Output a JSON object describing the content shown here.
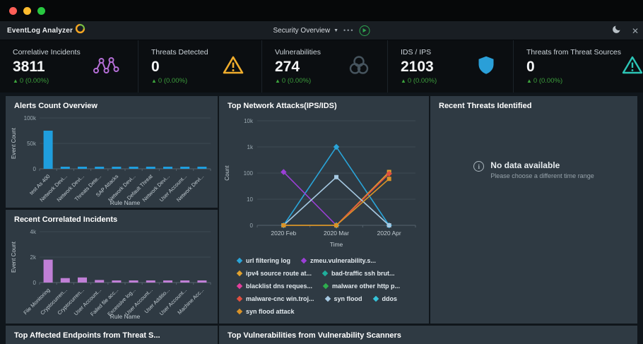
{
  "header": {
    "app_title": "EventLog Analyzer",
    "dashboard_selector": "Security Overview",
    "menu_dots": "•••"
  },
  "kpis": [
    {
      "label": "Correlative Incidents",
      "value": "3811",
      "delta": "0 (0.00%)",
      "icon": "molecule-icon",
      "icon_color": "#b66fd8"
    },
    {
      "label": "Threats Detected",
      "value": "0",
      "delta": "0 (0.00%)",
      "icon": "warning-triangle-icon",
      "icon_color": "#f0ad2d"
    },
    {
      "label": "Vulnerabilities",
      "value": "274",
      "delta": "0 (0.00%)",
      "icon": "biohazard-icon",
      "icon_color": "#46545e"
    },
    {
      "label": "IDS / IPS",
      "value": "2103",
      "delta": "0 (0.00%)",
      "icon": "shield-icon",
      "icon_color": "#2a9fd8"
    },
    {
      "label": "Threats from Threat Sources",
      "value": "0",
      "delta": "0 (0.00%)",
      "icon": "alert-triangle-icon",
      "icon_color": "#2cc5b6"
    }
  ],
  "panels": {
    "recent_threats": {
      "title": "Recent Threats Identified"
    },
    "top_endpoints": {
      "title": "Top Affected Endpoints from Threat S..."
    },
    "top_vulnerabilities": {
      "title": "Top Vulnerabilities from Vulnerability Scanners"
    }
  },
  "empty_state": {
    "title": "No data available",
    "subtitle": "Please choose a different time range"
  },
  "chart_data": [
    {
      "id": "alerts_count",
      "type": "bar",
      "title": "Alerts Count Overview",
      "categories": [
        "test As 400",
        "Network Devi...",
        "Network Devi...",
        "Threats Dete...",
        "SAP Attacks",
        "Network Devi...",
        "Default Threat",
        "Network Devi...",
        "User Account...",
        "Network Devi..."
      ],
      "values": [
        75000,
        1500,
        1500,
        1500,
        1500,
        1500,
        1500,
        1500,
        1500,
        1500
      ],
      "xlabel": "Rule Name",
      "ylabel": "Event Count",
      "yticks": [
        "0",
        "50k",
        "100k"
      ],
      "ylim": [
        0,
        100000
      ],
      "grid": true,
      "color": "#1f9ede"
    },
    {
      "id": "recent_correlated",
      "type": "bar",
      "title": "Recent Correlated Incidents",
      "categories": [
        "File Monitoring",
        "Cryptocurren...",
        "Cryptocurren...",
        "User Account...",
        "Failed file acc...",
        "Excessive log...",
        "User Account...",
        "User Additio...",
        "User Account...",
        "Machine Acc..."
      ],
      "values": [
        1800,
        350,
        400,
        200,
        150,
        150,
        150,
        150,
        150,
        150
      ],
      "xlabel": "Rule Name",
      "ylabel": "Event Count",
      "yticks": [
        "0",
        "2k",
        "4k"
      ],
      "ylim": [
        0,
        4000
      ],
      "grid": true,
      "color": "#c07fd6"
    },
    {
      "id": "network_attacks",
      "type": "line",
      "title": "Top Network Attacks(IPS/IDS)",
      "x": [
        "2020 Feb",
        "2020 Mar",
        "2020 Apr"
      ],
      "xlabel": "Time",
      "ylabel": "Count",
      "yticks": [
        "0",
        "10",
        "100",
        "1k",
        "10k"
      ],
      "scale": "log",
      "grid": true,
      "legend_position": "bottom",
      "series": [
        {
          "name": "url filtering log",
          "color": "#2aa4d8",
          "marker": "diamond",
          "values": [
            0,
            1000,
            0
          ]
        },
        {
          "name": "zmeu.vulnerability.s...",
          "color": "#9b3fd6",
          "marker": "diamond",
          "values": [
            110,
            0,
            null
          ]
        },
        {
          "name": "ipv4 source route at...",
          "color": "#e0a12f",
          "marker": "square",
          "values": [
            0,
            0,
            110
          ]
        },
        {
          "name": "bad-traffic ssh brut...",
          "color": "#1fae9b",
          "marker": "diamond",
          "values": [
            null,
            0,
            null
          ]
        },
        {
          "name": "blacklist dns reques...",
          "color": "#e43f9d",
          "marker": "diamond",
          "values": [
            null,
            0,
            null
          ]
        },
        {
          "name": "malware other http p...",
          "color": "#2eae4e",
          "marker": "diamond",
          "values": [
            null,
            0,
            null
          ]
        },
        {
          "name": "malware-cnc win.troj...",
          "color": "#e04f3f",
          "marker": "diamond",
          "values": [
            null,
            0,
            95
          ]
        },
        {
          "name": "syn flood",
          "color": "#a6c9e2",
          "marker": "square",
          "values": [
            0,
            70,
            0
          ]
        },
        {
          "name": "ddos",
          "color": "#35c3d8",
          "marker": "diamond",
          "values": [
            null,
            0,
            null
          ]
        },
        {
          "name": "syn flood attack",
          "color": "#d99328",
          "marker": "square",
          "values": [
            0,
            0,
            60
          ]
        }
      ]
    }
  ]
}
